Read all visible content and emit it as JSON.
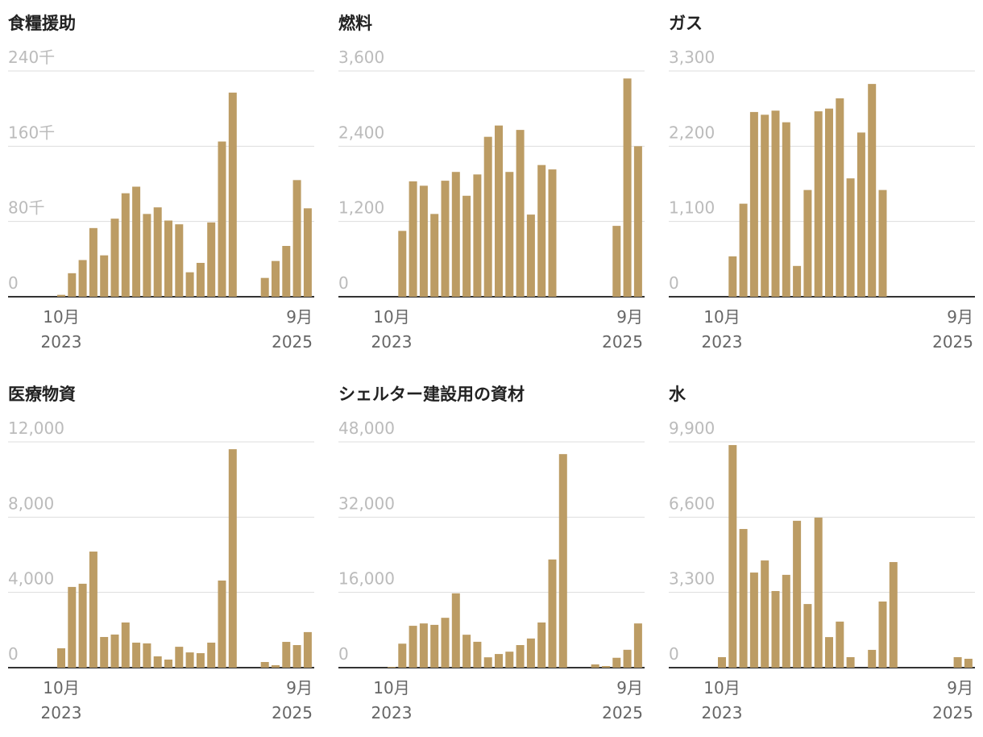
{
  "chart_data": [
    {
      "type": "bar",
      "title": "食糧援助",
      "color": "#bc9c64",
      "categories": [
        "10月",
        null,
        null,
        null,
        null,
        null,
        null,
        null,
        null,
        null,
        null,
        null,
        null,
        null,
        null,
        null,
        null,
        null,
        null,
        null,
        null,
        null,
        null,
        "9月"
      ],
      "years": [
        "2023",
        null,
        null,
        null,
        null,
        null,
        null,
        null,
        null,
        null,
        null,
        null,
        null,
        null,
        null,
        null,
        null,
        null,
        null,
        null,
        null,
        null,
        null,
        "2025"
      ],
      "values": [
        2000,
        25000,
        39000,
        73000,
        44000,
        83000,
        110000,
        117000,
        88000,
        95000,
        81000,
        77000,
        26000,
        36000,
        79000,
        165000,
        217000,
        null,
        null,
        20000,
        38000,
        54000,
        124000,
        94000
      ],
      "ylim": [
        0,
        240000
      ],
      "yticks": [
        0,
        {
          "value": 80000,
          "label": "80千"
        },
        {
          "value": 160000,
          "label": "160千"
        },
        {
          "value": 240000,
          "label": "240千"
        }
      ]
    },
    {
      "type": "bar",
      "title": "燃料",
      "color": "#bc9c64",
      "categories": [
        "10月",
        null,
        null,
        null,
        null,
        null,
        null,
        null,
        null,
        null,
        null,
        null,
        null,
        null,
        null,
        null,
        null,
        null,
        null,
        null,
        null,
        null,
        null,
        "9月"
      ],
      "years": [
        "2023",
        null,
        null,
        null,
        null,
        null,
        null,
        null,
        null,
        null,
        null,
        null,
        null,
        null,
        null,
        null,
        null,
        null,
        null,
        null,
        null,
        null,
        null,
        "2025"
      ],
      "values": [
        null,
        1050,
        1840,
        1770,
        1320,
        1850,
        1990,
        1610,
        1950,
        2550,
        2730,
        1990,
        2660,
        1310,
        2100,
        2030,
        null,
        null,
        null,
        null,
        null,
        1130,
        3480,
        2400
      ],
      "ylim": [
        0,
        3600
      ],
      "yticks": [
        0,
        {
          "value": 1200,
          "label": "1,200"
        },
        {
          "value": 2400,
          "label": "2,400"
        },
        {
          "value": 3600,
          "label": "3,600"
        }
      ]
    },
    {
      "type": "bar",
      "title": "ガス",
      "color": "#bc9c64",
      "categories": [
        "10月",
        null,
        null,
        null,
        null,
        null,
        null,
        null,
        null,
        null,
        null,
        null,
        null,
        null,
        null,
        null,
        null,
        null,
        null,
        null,
        null,
        null,
        null,
        "9月"
      ],
      "years": [
        "2023",
        null,
        null,
        null,
        null,
        null,
        null,
        null,
        null,
        null,
        null,
        null,
        null,
        null,
        null,
        null,
        null,
        null,
        null,
        null,
        null,
        null,
        null,
        "2025"
      ],
      "values": [
        null,
        590,
        1360,
        2700,
        2660,
        2720,
        2550,
        450,
        1560,
        2710,
        2750,
        2900,
        1730,
        2400,
        3110,
        1560,
        null,
        null,
        null,
        null,
        null,
        null,
        null,
        null
      ],
      "ylim": [
        0,
        3300
      ],
      "yticks": [
        0,
        {
          "value": 1100,
          "label": "1,100"
        },
        {
          "value": 2200,
          "label": "2,200"
        },
        {
          "value": 3300,
          "label": "3,300"
        }
      ]
    },
    {
      "type": "bar",
      "title": "医療物資",
      "color": "#bc9c64",
      "categories": [
        "10月",
        null,
        null,
        null,
        null,
        null,
        null,
        null,
        null,
        null,
        null,
        null,
        null,
        null,
        null,
        null,
        null,
        null,
        null,
        null,
        null,
        null,
        null,
        "9月"
      ],
      "years": [
        "2023",
        null,
        null,
        null,
        null,
        null,
        null,
        null,
        null,
        null,
        null,
        null,
        null,
        null,
        null,
        null,
        null,
        null,
        null,
        null,
        null,
        null,
        null,
        "2025"
      ],
      "values": [
        1030,
        4290,
        4460,
        6170,
        1630,
        1760,
        2400,
        1330,
        1290,
        600,
        430,
        1110,
        810,
        770,
        1330,
        4630,
        11610,
        null,
        null,
        300,
        130,
        1370,
        1200,
        1890
      ],
      "ylim": [
        0,
        12000
      ],
      "yticks": [
        0,
        {
          "value": 4000,
          "label": "4,000"
        },
        {
          "value": 8000,
          "label": "8,000"
        },
        {
          "value": 12000,
          "label": "12,000"
        }
      ]
    },
    {
      "type": "bar",
      "title": "シェルター建設用の資材",
      "color": "#bc9c64",
      "categories": [
        "10月",
        null,
        null,
        null,
        null,
        null,
        null,
        null,
        null,
        null,
        null,
        null,
        null,
        null,
        null,
        null,
        null,
        null,
        null,
        null,
        null,
        null,
        null,
        "9月"
      ],
      "years": [
        "2023",
        null,
        null,
        null,
        null,
        null,
        null,
        null,
        null,
        null,
        null,
        null,
        null,
        null,
        null,
        null,
        null,
        null,
        null,
        null,
        null,
        null,
        null,
        "2025"
      ],
      "values": [
        170,
        5100,
        8900,
        9400,
        9100,
        10600,
        15800,
        7000,
        5500,
        2200,
        2900,
        3400,
        4800,
        6200,
        9600,
        23000,
        45400,
        null,
        null,
        690,
        340,
        2100,
        3800,
        9400
      ],
      "ylim": [
        0,
        48000
      ],
      "yticks": [
        0,
        {
          "value": 16000,
          "label": "16,000"
        },
        {
          "value": 32000,
          "label": "32,000"
        },
        {
          "value": 48000,
          "label": "48,000"
        }
      ]
    },
    {
      "type": "bar",
      "title": "水",
      "color": "#bc9c64",
      "categories": [
        "10月",
        null,
        null,
        null,
        null,
        null,
        null,
        null,
        null,
        null,
        null,
        null,
        null,
        null,
        null,
        null,
        null,
        null,
        null,
        null,
        null,
        null,
        null,
        "9月"
      ],
      "years": [
        "2023",
        null,
        null,
        null,
        null,
        null,
        null,
        null,
        null,
        null,
        null,
        null,
        null,
        null,
        null,
        null,
        null,
        null,
        null,
        null,
        null,
        null,
        null,
        "2025"
      ],
      "values": [
        460,
        9760,
        6080,
        4170,
        4700,
        3360,
        4070,
        6440,
        2790,
        6580,
        1340,
        2020,
        460,
        null,
        780,
        2900,
        4630,
        null,
        null,
        null,
        null,
        null,
        460,
        390
      ],
      "ylim": [
        0,
        9900
      ],
      "yticks": [
        0,
        {
          "value": 3300,
          "label": "3,300"
        },
        {
          "value": 6600,
          "label": "6,600"
        },
        {
          "value": 9900,
          "label": "9,900"
        }
      ]
    }
  ]
}
